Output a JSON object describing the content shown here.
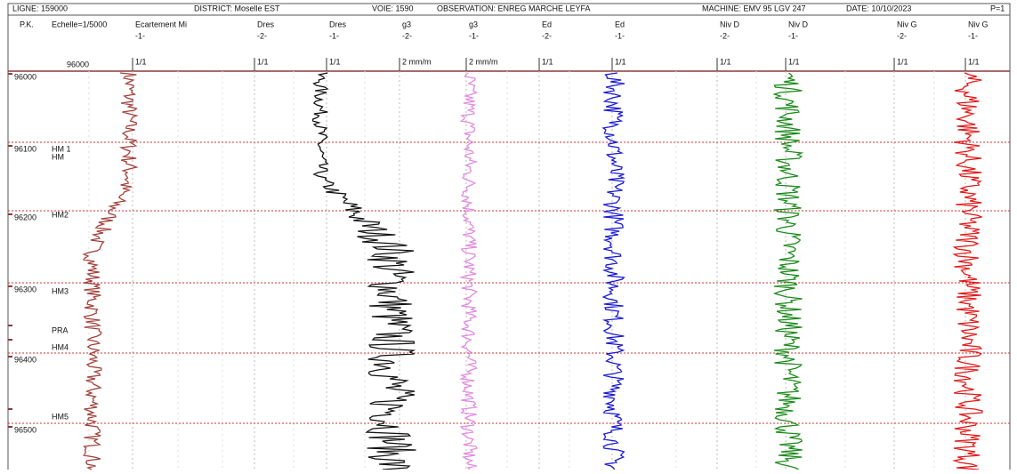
{
  "header": {
    "ligne": "LIGNE: 159000",
    "district": "DISTRICT: Moselle EST",
    "voie": "VOIE: 1590",
    "observation": "OBSERVATION: ENREG MARCHE LEYFA",
    "machine": "MACHINE: EMV 95 LGV 247",
    "date": "DATE: 10/10/2023",
    "page": "P=1"
  },
  "columns": [
    {
      "name": "P.K."
    },
    {
      "name": "Echelle=1/5000",
      "scale": "96000"
    },
    {
      "name": "Ecartement Mi",
      "sub": "-1-",
      "scale": "1/1"
    },
    {
      "name": "Dres",
      "sub": "-2-",
      "scale": "1/1"
    },
    {
      "name": "Dres",
      "sub": "-1-",
      "scale": "1/1"
    },
    {
      "name": "g3",
      "sub": "-2-",
      "scale": "2 mm/m"
    },
    {
      "name": "g3",
      "sub": "-1-",
      "scale": "2 mm/m"
    },
    {
      "name": "Ed",
      "sub": "-2-",
      "scale": "1/1"
    },
    {
      "name": "Ed",
      "sub": "-1-",
      "scale": "1/1"
    },
    {
      "name": "Niv D",
      "sub": "-2-",
      "scale": "1/1"
    },
    {
      "name": "Niv D",
      "sub": "-1-",
      "scale": "1/1"
    },
    {
      "name": "Niv G",
      "sub": "-2-",
      "scale": "1/1"
    },
    {
      "name": "Niv G",
      "sub": "-1-",
      "scale": "1/1"
    }
  ],
  "pk_labels": [
    "96000",
    "96100",
    "96200",
    "96300",
    "96400",
    "96500"
  ],
  "markers": [
    "HM 1",
    "HM",
    "HM2",
    "HM3",
    "PRA",
    "HM4",
    "HM5"
  ]
}
